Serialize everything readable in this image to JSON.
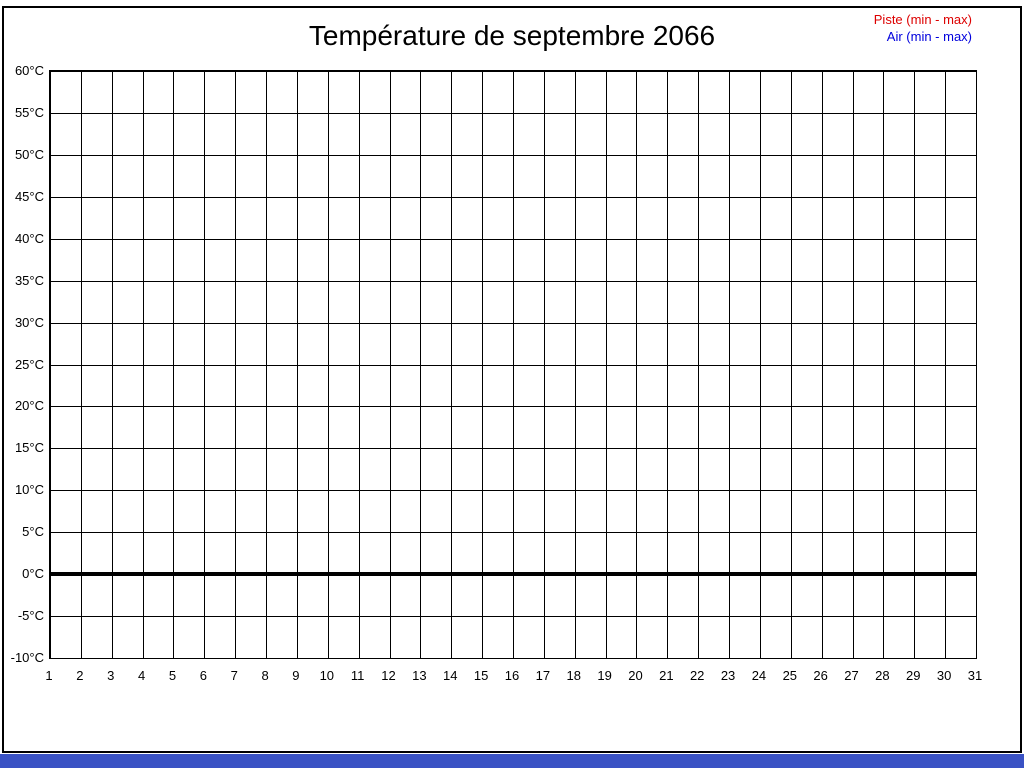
{
  "title": "Température de septembre 2066",
  "legend": {
    "items": [
      {
        "label": "Piste (min - max)",
        "color": "#dd0000"
      },
      {
        "label": "Air (min - max)",
        "color": "#0000dd"
      }
    ]
  },
  "colors": {
    "frame": "#000000",
    "grid": "#000000",
    "zero_line": "#000000",
    "background": "#ffffff",
    "bottom_bar": "#3a52c4"
  },
  "chart_data": {
    "type": "line",
    "title": "Température de septembre 2066",
    "xlabel": "",
    "ylabel": "",
    "x": {
      "range": [
        1,
        31
      ],
      "tick_labels": [
        "1",
        "2",
        "3",
        "4",
        "5",
        "6",
        "7",
        "8",
        "9",
        "10",
        "11",
        "12",
        "13",
        "14",
        "15",
        "16",
        "17",
        "18",
        "19",
        "20",
        "21",
        "22",
        "23",
        "24",
        "25",
        "26",
        "27",
        "28",
        "29",
        "30",
        "31"
      ]
    },
    "y": {
      "range": [
        -10,
        60
      ],
      "unit": "°C",
      "tick_labels": [
        "60°C",
        "55°C",
        "50°C",
        "45°C",
        "40°C",
        "35°C",
        "30°C",
        "25°C",
        "20°C",
        "15°C",
        "10°C",
        "5°C",
        "0°C",
        "-5°C",
        "-10°C"
      ]
    },
    "grid": true,
    "legend_position": "top-right",
    "zero_line_value": 0,
    "series": [
      {
        "name": "Piste (min - max)",
        "color": "#dd0000",
        "values": []
      },
      {
        "name": "Air (min - max)",
        "color": "#0000dd",
        "values": []
      }
    ]
  }
}
